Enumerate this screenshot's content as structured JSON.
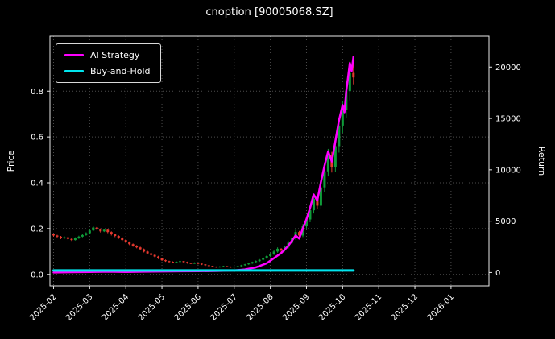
{
  "chart_data": {
    "type": "candlestick",
    "title": "cnoption [90005068.SZ]",
    "x_tick_labels": [
      "2025-02",
      "2025-03",
      "2025-04",
      "2025-05",
      "2025-06",
      "2025-07",
      "2025-08",
      "2025-09",
      "2025-10",
      "2025-11",
      "2025-12",
      "2026-01"
    ],
    "x_tick_values": [
      0,
      1,
      2,
      3,
      4,
      5,
      6,
      7,
      8,
      9,
      10,
      11
    ],
    "xlim": [
      -0.1,
      12.05
    ],
    "left_axis": {
      "label": "Price",
      "tick_values": [
        0.0,
        0.2,
        0.4,
        0.6,
        0.8
      ],
      "tick_labels": [
        "0.0",
        "0.2",
        "0.4",
        "0.6",
        "0.8"
      ],
      "lim": [
        -0.05,
        1.04
      ]
    },
    "right_axis": {
      "label": "Return",
      "tick_values": [
        0,
        5000,
        10000,
        15000,
        20000
      ],
      "tick_labels": [
        "0",
        "5000",
        "10000",
        "15000",
        "20000"
      ],
      "lim": [
        -1300,
        23000
      ]
    },
    "style": {
      "background": "#000000",
      "text": "#ffffff",
      "grid": "#4d4d4d",
      "spine": "#e8e8e8",
      "up": "#0f9d3a",
      "down": "#e8392f"
    },
    "grid": true,
    "legend": {
      "position": "upper-left",
      "items": [
        {
          "label": "AI Strategy",
          "color": "#ff00ff"
        },
        {
          "label": "Buy-and-Hold",
          "color": "#00e5ee"
        }
      ]
    },
    "candles": [
      [
        0.0,
        0.175,
        0.178,
        0.165,
        0.17
      ],
      [
        0.1,
        0.17,
        0.173,
        0.16,
        0.165
      ],
      [
        0.2,
        0.165,
        0.168,
        0.154,
        0.158
      ],
      [
        0.3,
        0.158,
        0.166,
        0.155,
        0.162
      ],
      [
        0.4,
        0.162,
        0.164,
        0.15,
        0.155
      ],
      [
        0.5,
        0.155,
        0.159,
        0.146,
        0.15
      ],
      [
        0.6,
        0.15,
        0.162,
        0.148,
        0.158
      ],
      [
        0.7,
        0.158,
        0.169,
        0.155,
        0.165
      ],
      [
        0.8,
        0.165,
        0.176,
        0.162,
        0.172
      ],
      [
        0.9,
        0.172,
        0.184,
        0.169,
        0.18
      ],
      [
        1.0,
        0.18,
        0.196,
        0.177,
        0.192
      ],
      [
        1.1,
        0.192,
        0.21,
        0.189,
        0.205
      ],
      [
        1.2,
        0.205,
        0.208,
        0.193,
        0.198
      ],
      [
        1.3,
        0.198,
        0.201,
        0.183,
        0.188
      ],
      [
        1.4,
        0.188,
        0.199,
        0.185,
        0.195
      ],
      [
        1.5,
        0.195,
        0.197,
        0.18,
        0.185
      ],
      [
        1.6,
        0.185,
        0.188,
        0.17,
        0.175
      ],
      [
        1.7,
        0.175,
        0.178,
        0.163,
        0.168
      ],
      [
        1.8,
        0.168,
        0.171,
        0.155,
        0.16
      ],
      [
        1.9,
        0.16,
        0.163,
        0.146,
        0.15
      ],
      [
        2.0,
        0.15,
        0.153,
        0.136,
        0.14
      ],
      [
        2.1,
        0.14,
        0.144,
        0.128,
        0.132
      ],
      [
        2.2,
        0.132,
        0.135,
        0.121,
        0.125
      ],
      [
        2.3,
        0.125,
        0.128,
        0.114,
        0.118
      ],
      [
        2.4,
        0.118,
        0.121,
        0.106,
        0.11
      ],
      [
        2.5,
        0.11,
        0.113,
        0.096,
        0.1
      ],
      [
        2.6,
        0.1,
        0.103,
        0.089,
        0.092
      ],
      [
        2.7,
        0.092,
        0.095,
        0.082,
        0.085
      ],
      [
        2.8,
        0.085,
        0.088,
        0.075,
        0.078
      ],
      [
        2.9,
        0.078,
        0.081,
        0.067,
        0.07
      ],
      [
        3.0,
        0.07,
        0.072,
        0.059,
        0.062
      ],
      [
        3.1,
        0.062,
        0.065,
        0.055,
        0.058
      ],
      [
        3.2,
        0.058,
        0.06,
        0.052,
        0.055
      ],
      [
        3.3,
        0.055,
        0.057,
        0.049,
        0.052
      ],
      [
        3.4,
        0.052,
        0.057,
        0.05,
        0.055
      ],
      [
        3.5,
        0.055,
        0.061,
        0.053,
        0.058
      ],
      [
        3.6,
        0.058,
        0.059,
        0.051,
        0.054
      ],
      [
        3.7,
        0.054,
        0.056,
        0.047,
        0.05
      ],
      [
        3.8,
        0.05,
        0.052,
        0.045,
        0.048
      ],
      [
        3.9,
        0.048,
        0.053,
        0.046,
        0.05
      ],
      [
        4.0,
        0.05,
        0.051,
        0.044,
        0.047
      ],
      [
        4.1,
        0.047,
        0.048,
        0.041,
        0.044
      ],
      [
        4.2,
        0.044,
        0.045,
        0.037,
        0.04
      ],
      [
        4.3,
        0.04,
        0.041,
        0.034,
        0.037
      ],
      [
        4.4,
        0.037,
        0.038,
        0.031,
        0.034
      ],
      [
        4.5,
        0.034,
        0.035,
        0.029,
        0.032
      ],
      [
        4.6,
        0.032,
        0.036,
        0.03,
        0.034
      ],
      [
        4.7,
        0.034,
        0.038,
        0.032,
        0.036
      ],
      [
        4.8,
        0.036,
        0.037,
        0.031,
        0.034
      ],
      [
        4.9,
        0.034,
        0.035,
        0.029,
        0.032
      ],
      [
        5.0,
        0.032,
        0.036,
        0.03,
        0.034
      ],
      [
        5.1,
        0.034,
        0.038,
        0.032,
        0.036
      ],
      [
        5.2,
        0.036,
        0.042,
        0.034,
        0.04
      ],
      [
        5.3,
        0.04,
        0.046,
        0.038,
        0.044
      ],
      [
        5.4,
        0.044,
        0.05,
        0.042,
        0.048
      ],
      [
        5.5,
        0.048,
        0.056,
        0.046,
        0.054
      ],
      [
        5.6,
        0.054,
        0.061,
        0.051,
        0.058
      ],
      [
        5.7,
        0.058,
        0.067,
        0.055,
        0.064
      ],
      [
        5.8,
        0.064,
        0.075,
        0.061,
        0.072
      ],
      [
        5.9,
        0.072,
        0.084,
        0.068,
        0.08
      ],
      [
        6.0,
        0.08,
        0.094,
        0.076,
        0.09
      ],
      [
        6.1,
        0.09,
        0.105,
        0.085,
        0.1
      ],
      [
        6.2,
        0.1,
        0.118,
        0.095,
        0.112
      ],
      [
        6.3,
        0.112,
        0.115,
        0.098,
        0.105
      ],
      [
        6.4,
        0.105,
        0.126,
        0.1,
        0.12
      ],
      [
        6.5,
        0.12,
        0.145,
        0.114,
        0.138
      ],
      [
        6.6,
        0.138,
        0.168,
        0.13,
        0.16
      ],
      [
        6.7,
        0.16,
        0.195,
        0.152,
        0.185
      ],
      [
        6.8,
        0.185,
        0.19,
        0.16,
        0.17
      ],
      [
        6.9,
        0.17,
        0.22,
        0.163,
        0.21
      ],
      [
        7.0,
        0.21,
        0.252,
        0.2,
        0.24
      ],
      [
        7.1,
        0.24,
        0.295,
        0.228,
        0.28
      ],
      [
        7.2,
        0.28,
        0.348,
        0.266,
        0.33
      ],
      [
        7.3,
        0.33,
        0.34,
        0.285,
        0.3
      ],
      [
        7.4,
        0.3,
        0.4,
        0.285,
        0.38
      ],
      [
        7.5,
        0.38,
        0.475,
        0.36,
        0.45
      ],
      [
        7.6,
        0.45,
        0.548,
        0.428,
        0.52
      ],
      [
        7.7,
        0.52,
        0.535,
        0.445,
        0.47
      ],
      [
        7.8,
        0.47,
        0.59,
        0.447,
        0.56
      ],
      [
        7.9,
        0.56,
        0.685,
        0.532,
        0.65
      ],
      [
        8.0,
        0.65,
        0.758,
        0.618,
        0.72
      ],
      [
        8.1,
        0.72,
        0.845,
        0.684,
        0.8
      ],
      [
        8.2,
        0.8,
        0.93,
        0.76,
        0.88
      ],
      [
        8.3,
        0.88,
        0.945,
        0.83,
        0.86
      ]
    ],
    "series": [
      {
        "name": "AI Strategy",
        "axis": "right",
        "color": "#ff00ff",
        "width": 2.5,
        "x": [
          0,
          0.5,
          1,
          1.5,
          2,
          2.5,
          3,
          3.5,
          4,
          4.5,
          5,
          5.3,
          5.6,
          5.9,
          6.1,
          6.3,
          6.5,
          6.7,
          6.8,
          6.9,
          7.0,
          7.1,
          7.2,
          7.3,
          7.4,
          7.5,
          7.6,
          7.7,
          7.8,
          7.9,
          8.0,
          8.05,
          8.1,
          8.15,
          8.2,
          8.25,
          8.3
        ],
        "y": [
          0,
          30,
          60,
          80,
          60,
          80,
          100,
          120,
          130,
          150,
          200,
          300,
          500,
          900,
          1400,
          1900,
          2600,
          3600,
          3300,
          4300,
          5200,
          6300,
          7600,
          7000,
          8800,
          10400,
          11800,
          10800,
          12800,
          14800,
          16300,
          15600,
          17600,
          19000,
          20400,
          19600,
          21000
        ]
      },
      {
        "name": "Buy-and-Hold",
        "axis": "right",
        "color": "#00e5ee",
        "width": 3,
        "x": [
          0,
          8.3
        ],
        "y": [
          200,
          200
        ]
      }
    ]
  }
}
